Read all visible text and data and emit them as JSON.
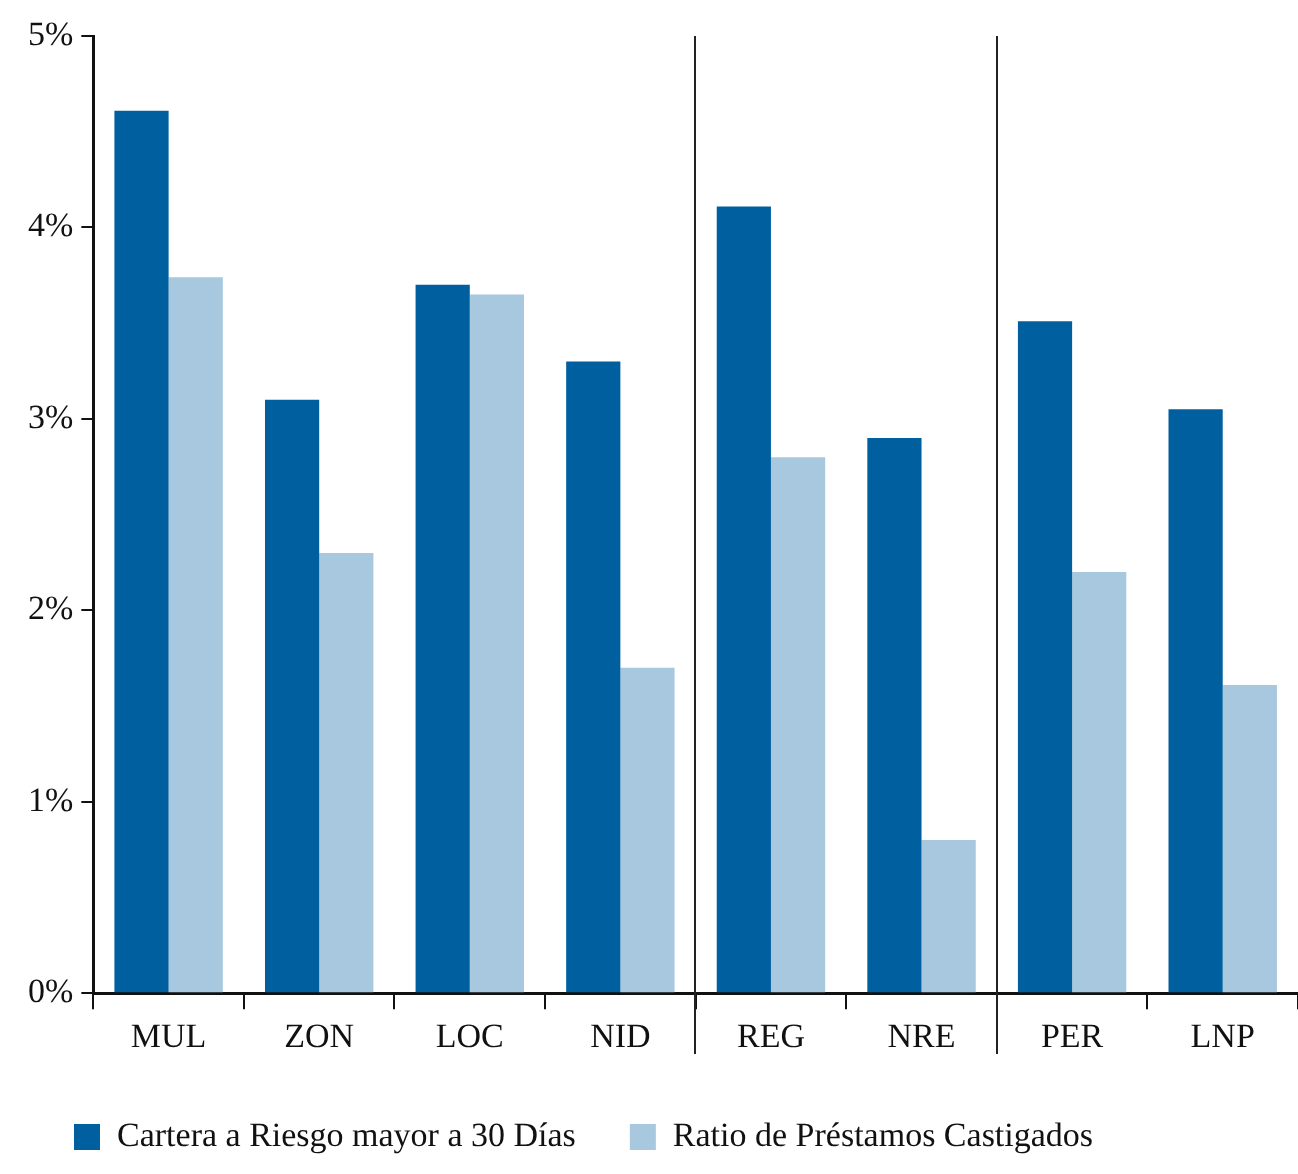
{
  "chart_data": {
    "type": "bar",
    "categories": [
      "MUL",
      "ZON",
      "LOC",
      "NID",
      "REG",
      "NRE",
      "PER",
      "LNP"
    ],
    "series": [
      {
        "name": "Cartera a Riesgo mayor a 30 Días",
        "color": "#00609f",
        "values": [
          4.61,
          3.1,
          3.7,
          3.3,
          4.11,
          2.9,
          3.51,
          3.05
        ]
      },
      {
        "name": "Ratio de Préstamos Castigados",
        "color": "#a7c8de",
        "values": [
          3.74,
          2.3,
          3.65,
          1.7,
          2.8,
          0.8,
          2.2,
          1.61
        ]
      }
    ],
    "ylim": [
      0,
      5
    ],
    "yticks": [
      {
        "value": 0,
        "label": "0%"
      },
      {
        "value": 1,
        "label": "1%"
      },
      {
        "value": 2,
        "label": "2%"
      },
      {
        "value": 3,
        "label": "3%"
      },
      {
        "value": 4,
        "label": "4%"
      },
      {
        "value": 5,
        "label": "5%"
      }
    ],
    "grid": false,
    "legend": "bottom"
  }
}
